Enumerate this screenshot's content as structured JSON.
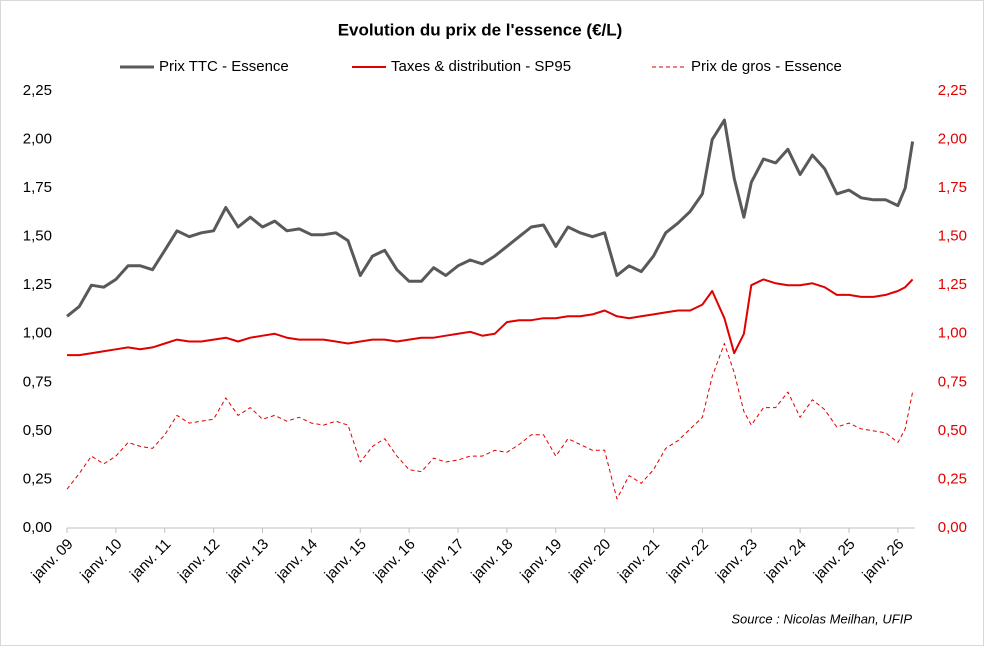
{
  "chart_data": {
    "type": "line",
    "title": "Evolution du prix de l'essence (€/L)",
    "annotation": "Source : Nicolas Meilhan, UFIP",
    "x": [
      2009.0,
      2009.25,
      2009.5,
      2009.75,
      2010.0,
      2010.25,
      2010.5,
      2010.75,
      2011.0,
      2011.25,
      2011.5,
      2011.75,
      2012.0,
      2012.25,
      2012.5,
      2012.75,
      2013.0,
      2013.25,
      2013.5,
      2013.75,
      2014.0,
      2014.25,
      2014.5,
      2014.75,
      2015.0,
      2015.25,
      2015.5,
      2015.75,
      2016.0,
      2016.25,
      2016.5,
      2016.75,
      2017.0,
      2017.25,
      2017.5,
      2017.75,
      2018.0,
      2018.25,
      2018.5,
      2018.75,
      2019.0,
      2019.25,
      2019.5,
      2019.75,
      2020.0,
      2020.25,
      2020.5,
      2020.75,
      2021.0,
      2021.25,
      2021.5,
      2021.75,
      2022.0,
      2022.2,
      2022.45,
      2022.65,
      2022.85,
      2023.0,
      2023.25,
      2023.5,
      2023.75,
      2024.0,
      2024.25,
      2024.5,
      2024.75,
      2025.0,
      2025.25,
      2025.5,
      2025.75,
      2026.0,
      2026.15,
      2026.3
    ],
    "series": [
      {
        "name": "Prix TTC - Essence",
        "color": "#595959",
        "line_style": "solid",
        "values": [
          1.09,
          1.14,
          1.25,
          1.24,
          1.28,
          1.35,
          1.35,
          1.33,
          1.43,
          1.53,
          1.5,
          1.52,
          1.53,
          1.65,
          1.55,
          1.6,
          1.55,
          1.58,
          1.53,
          1.54,
          1.51,
          1.51,
          1.52,
          1.48,
          1.3,
          1.4,
          1.43,
          1.33,
          1.27,
          1.27,
          1.34,
          1.3,
          1.35,
          1.38,
          1.36,
          1.4,
          1.45,
          1.5,
          1.55,
          1.56,
          1.45,
          1.55,
          1.52,
          1.5,
          1.52,
          1.3,
          1.35,
          1.32,
          1.4,
          1.52,
          1.57,
          1.63,
          1.72,
          2.0,
          2.1,
          1.8,
          1.6,
          1.78,
          1.9,
          1.88,
          1.95,
          1.82,
          1.92,
          1.85,
          1.72,
          1.74,
          1.7,
          1.69,
          1.69,
          1.66,
          1.75,
          1.99
        ]
      },
      {
        "name": "Taxes & distribution - SP95",
        "color": "#e00000",
        "line_style": "solid",
        "values": [
          0.89,
          0.89,
          0.9,
          0.91,
          0.92,
          0.93,
          0.92,
          0.93,
          0.95,
          0.97,
          0.96,
          0.96,
          0.97,
          0.98,
          0.96,
          0.98,
          0.99,
          1.0,
          0.98,
          0.97,
          0.97,
          0.97,
          0.96,
          0.95,
          0.96,
          0.97,
          0.97,
          0.96,
          0.97,
          0.98,
          0.98,
          0.99,
          1.0,
          1.01,
          0.99,
          1.0,
          1.06,
          1.07,
          1.07,
          1.08,
          1.08,
          1.09,
          1.09,
          1.1,
          1.12,
          1.09,
          1.08,
          1.09,
          1.1,
          1.11,
          1.12,
          1.12,
          1.15,
          1.22,
          1.08,
          0.9,
          1.0,
          1.25,
          1.28,
          1.26,
          1.25,
          1.25,
          1.26,
          1.24,
          1.2,
          1.2,
          1.19,
          1.19,
          1.2,
          1.22,
          1.24,
          1.28
        ]
      },
      {
        "name": "Prix de gros - Essence",
        "color": "#e00000",
        "line_style": "dashed",
        "values": [
          0.2,
          0.28,
          0.37,
          0.33,
          0.37,
          0.44,
          0.42,
          0.41,
          0.48,
          0.58,
          0.54,
          0.55,
          0.56,
          0.67,
          0.58,
          0.62,
          0.56,
          0.58,
          0.55,
          0.57,
          0.54,
          0.53,
          0.55,
          0.53,
          0.34,
          0.42,
          0.46,
          0.37,
          0.3,
          0.29,
          0.36,
          0.34,
          0.35,
          0.37,
          0.37,
          0.4,
          0.39,
          0.43,
          0.48,
          0.48,
          0.37,
          0.46,
          0.43,
          0.4,
          0.4,
          0.15,
          0.27,
          0.23,
          0.3,
          0.41,
          0.45,
          0.51,
          0.57,
          0.78,
          0.95,
          0.8,
          0.6,
          0.53,
          0.62,
          0.62,
          0.7,
          0.57,
          0.66,
          0.61,
          0.52,
          0.54,
          0.51,
          0.5,
          0.49,
          0.44,
          0.51,
          0.7
        ]
      }
    ],
    "xlim": [
      2009,
      2026.35
    ],
    "xticks": [
      {
        "value": 2009,
        "label": "janv. 09"
      },
      {
        "value": 2010,
        "label": "janv. 10"
      },
      {
        "value": 2011,
        "label": "janv. 11"
      },
      {
        "value": 2012,
        "label": "janv. 12"
      },
      {
        "value": 2013,
        "label": "janv. 13"
      },
      {
        "value": 2014,
        "label": "janv. 14"
      },
      {
        "value": 2015,
        "label": "janv. 15"
      },
      {
        "value": 2016,
        "label": "janv. 16"
      },
      {
        "value": 2017,
        "label": "janv. 17"
      },
      {
        "value": 2018,
        "label": "janv. 18"
      },
      {
        "value": 2019,
        "label": "janv. 19"
      },
      {
        "value": 2020,
        "label": "janv. 20"
      },
      {
        "value": 2021,
        "label": "janv. 21"
      },
      {
        "value": 2022,
        "label": "janv. 22"
      },
      {
        "value": 2023,
        "label": "janv. 23"
      },
      {
        "value": 2024,
        "label": "janv. 24"
      },
      {
        "value": 2025,
        "label": "janv. 25"
      },
      {
        "value": 2026,
        "label": "janv. 26"
      }
    ],
    "ylim": [
      0,
      2.25
    ],
    "yticks": [
      {
        "value": 0,
        "label": "0,00"
      },
      {
        "value": 0.25,
        "label": "0,25"
      },
      {
        "value": 0.5,
        "label": "0,50"
      },
      {
        "value": 0.75,
        "label": "0,75"
      },
      {
        "value": 1,
        "label": "1,00"
      },
      {
        "value": 1.25,
        "label": "1,25"
      },
      {
        "value": 1.5,
        "label": "1,50"
      },
      {
        "value": 1.75,
        "label": "1,75"
      },
      {
        "value": 2,
        "label": "2,00"
      },
      {
        "value": 2.25,
        "label": "2,25"
      }
    ],
    "y2lim": [
      0,
      2.25
    ],
    "y2ticks": [
      {
        "value": 0,
        "label": "0,00"
      },
      {
        "value": 0.25,
        "label": "0,25"
      },
      {
        "value": 0.5,
        "label": "0,50"
      },
      {
        "value": 0.75,
        "label": "0,75"
      },
      {
        "value": 1,
        "label": "1,00"
      },
      {
        "value": 1.25,
        "label": "1,25"
      },
      {
        "value": 1.5,
        "label": "1,50"
      },
      {
        "value": 1.75,
        "label": "1,75"
      },
      {
        "value": 2,
        "label": "2,00"
      },
      {
        "value": 2.25,
        "label": "2,25"
      }
    ],
    "y2_color": "#e00000",
    "legend": "top"
  }
}
